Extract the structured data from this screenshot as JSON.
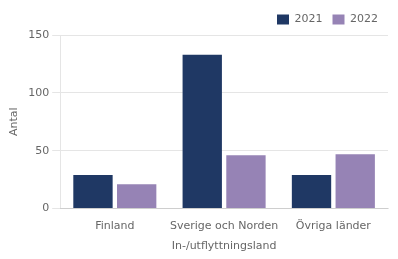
{
  "chart_data": {
    "type": "bar",
    "categories": [
      "Finland",
      "Sverige och Norden",
      "Övriga länder"
    ],
    "series": [
      {
        "name": "2021",
        "color": "#1f3864",
        "values": [
          29,
          133,
          29
        ]
      },
      {
        "name": "2022",
        "color": "#9683b5",
        "values": [
          21,
          46,
          47
        ]
      }
    ],
    "xlabel": "In-/utflyttningsland",
    "ylabel": "Antal",
    "ylim": [
      0,
      150
    ],
    "yticks": [
      0,
      50,
      100,
      150
    ],
    "grid": true,
    "legend": "upper right"
  }
}
